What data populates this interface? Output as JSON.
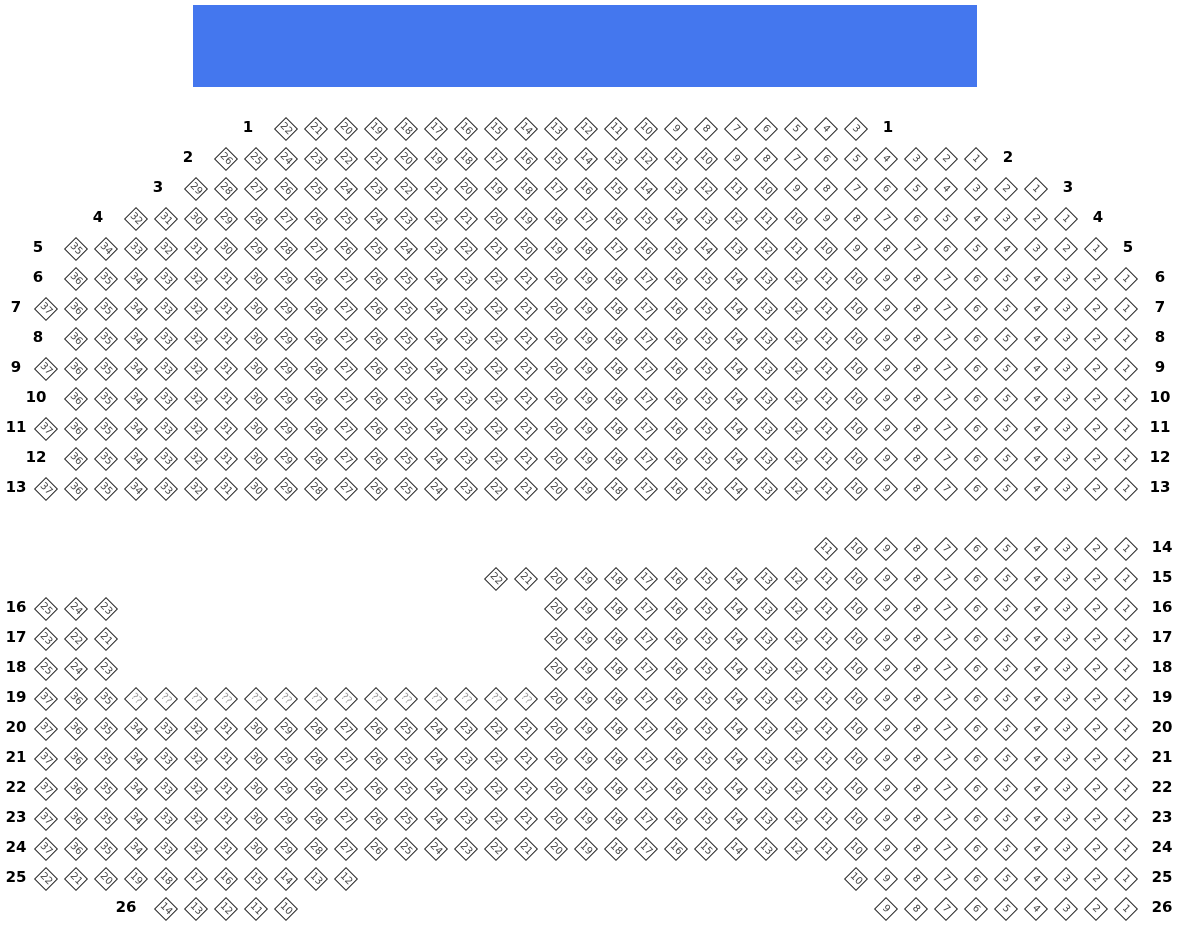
{
  "stage": {
    "color": "#4477EE"
  },
  "seat_style": {
    "border": "#222222",
    "fill": "#ffffff",
    "text": "#444444",
    "unknown_text": "#999999"
  },
  "rows": [
    {
      "label": "1",
      "groups": [
        {
          "from": 3,
          "to": 22
        }
      ]
    },
    {
      "label": "2",
      "groups": [
        {
          "from": 1,
          "to": 26
        }
      ]
    },
    {
      "label": "3",
      "groups": [
        {
          "from": 1,
          "to": 29
        }
      ]
    },
    {
      "label": "4",
      "groups": [
        {
          "from": 1,
          "to": 32
        }
      ]
    },
    {
      "label": "5",
      "groups": [
        {
          "from": 1,
          "to": 35
        }
      ]
    },
    {
      "label": "6",
      "groups": [
        {
          "from": 1,
          "to": 36
        }
      ]
    },
    {
      "label": "7",
      "groups": [
        {
          "from": 1,
          "to": 37
        }
      ]
    },
    {
      "label": "8",
      "groups": [
        {
          "from": 1,
          "to": 36
        }
      ]
    },
    {
      "label": "9",
      "groups": [
        {
          "from": 1,
          "to": 37
        }
      ]
    },
    {
      "label": "10",
      "groups": [
        {
          "from": 1,
          "to": 36
        }
      ]
    },
    {
      "label": "11",
      "groups": [
        {
          "from": 1,
          "to": 37
        }
      ]
    },
    {
      "label": "12",
      "groups": [
        {
          "from": 1,
          "to": 36
        }
      ]
    },
    {
      "label": "13",
      "groups": [
        {
          "from": 1,
          "to": 37
        }
      ]
    },
    {
      "label": "14",
      "groups": [
        {
          "from": 1,
          "to": 11
        }
      ]
    },
    {
      "label": "15",
      "groups": [
        {
          "from": 1,
          "to": 22
        }
      ]
    },
    {
      "label": "16",
      "groups": [
        {
          "from": 23,
          "to": 25
        },
        {
          "from": 1,
          "to": 20
        }
      ]
    },
    {
      "label": "17",
      "groups": [
        {
          "from": 21,
          "to": 23
        },
        {
          "from": 1,
          "to": 20
        }
      ]
    },
    {
      "label": "18",
      "groups": [
        {
          "from": 23,
          "to": 25
        },
        {
          "from": 1,
          "to": 20
        }
      ]
    },
    {
      "label": "19",
      "groups": [
        {
          "from": 35,
          "to": 37
        },
        {
          "unknown_from": 21,
          "unknown_to": 34,
          "text": "??"
        },
        {
          "from": 1,
          "to": 20
        }
      ]
    },
    {
      "label": "20",
      "groups": [
        {
          "from": 1,
          "to": 37
        }
      ]
    },
    {
      "label": "21",
      "groups": [
        {
          "from": 1,
          "to": 37
        }
      ]
    },
    {
      "label": "22",
      "groups": [
        {
          "from": 1,
          "to": 37
        }
      ]
    },
    {
      "label": "23",
      "groups": [
        {
          "from": 1,
          "to": 37
        }
      ]
    },
    {
      "label": "24",
      "groups": [
        {
          "from": 1,
          "to": 37
        }
      ]
    },
    {
      "label": "25",
      "groups": [
        {
          "from": 12,
          "to": 22
        },
        {
          "from": 1,
          "to": 10
        }
      ]
    },
    {
      "label": "26",
      "groups": [
        {
          "from": 10,
          "to": 14
        },
        {
          "from": 1,
          "to": 9
        }
      ]
    }
  ]
}
